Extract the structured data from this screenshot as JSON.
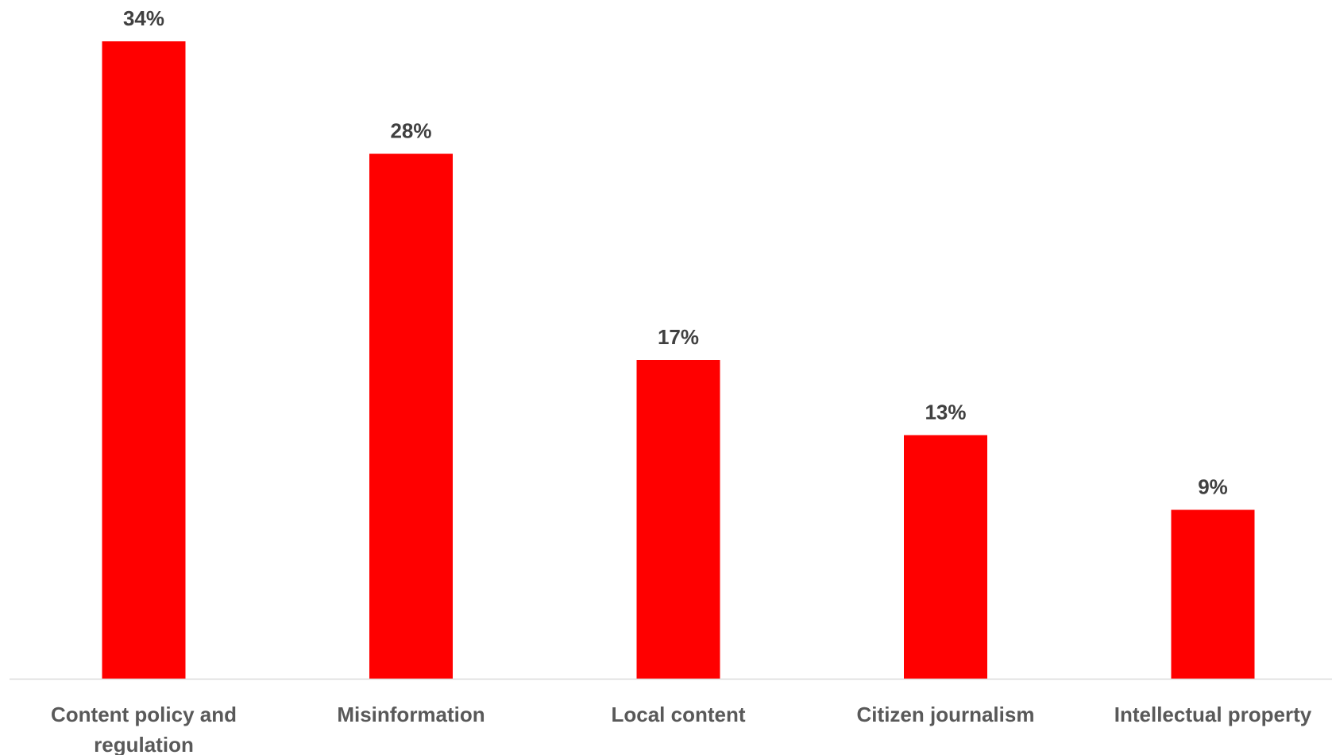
{
  "chart_data": {
    "type": "bar",
    "title": "",
    "xlabel": "",
    "ylabel": "",
    "categories": [
      "Content policy and regulation",
      "Misinformation",
      "Local content",
      "Citizen journalism",
      "Intellectual property"
    ],
    "category_label_lines": [
      [
        "Content policy and",
        "regulation"
      ],
      [
        "Misinformation"
      ],
      [
        "Local content"
      ],
      [
        "Citizen journalism"
      ],
      [
        "Intellectual property"
      ]
    ],
    "values": [
      34,
      28,
      17,
      13,
      9
    ],
    "data_labels": [
      "34%",
      "28%",
      "17%",
      "13%",
      "9%"
    ],
    "unit": "%",
    "ylim": [
      0,
      34
    ],
    "grid": false,
    "legend": "none",
    "bar_color": "#ff0000",
    "axis_color": "#d9d9d9"
  }
}
